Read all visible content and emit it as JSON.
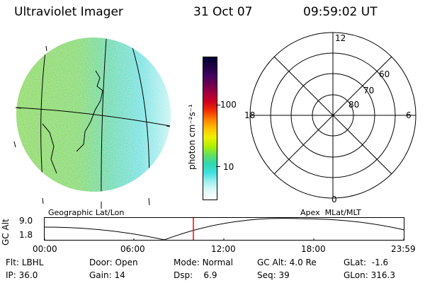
{
  "header": {
    "instrument": "Ultraviolet Imager",
    "date": "31 Oct 07",
    "time": "09:59:02 UT"
  },
  "colorbar": {
    "unit_label": "photon cm⁻²s⁻¹",
    "ticks": [
      "100",
      "10"
    ],
    "colors": [
      "#000033",
      "#200040",
      "#400060",
      "#6a0050",
      "#a00040",
      "#d00020",
      "#f03000",
      "#ff8000",
      "#ffc000",
      "#f0f000",
      "#b0f000",
      "#60e060",
      "#30d8b0",
      "#40e0e0",
      "#a0f0f0",
      "#e0f8f8",
      "#ffffff"
    ]
  },
  "polar_plot": {
    "mlt_labels": {
      "top": "12",
      "right": "6",
      "bottom": "0",
      "left": "18"
    },
    "lat_labels": [
      "60",
      "70",
      "80"
    ]
  },
  "coords": {
    "left_label": "Geographic Lat/Lon",
    "right_label": "Apex  MLat/MLT"
  },
  "orbit_plot": {
    "ylabel": "GC Alt",
    "yticks": [
      "9.0",
      "1.8"
    ],
    "xticks": [
      "00:00",
      "06:00",
      "12:00",
      "18:00",
      "23:59"
    ],
    "cursor_color": "#ff0000"
  },
  "info": {
    "row1": [
      {
        "label": "Flt:",
        "value": "LBHL"
      },
      {
        "label": "Door:",
        "value": "Open"
      },
      {
        "label": "Mode:",
        "value": "Normal"
      },
      {
        "label": "GC Alt:",
        "value": "4.0 Re"
      },
      {
        "label": "GLat:",
        "value": "-1.6"
      }
    ],
    "row2": [
      {
        "label": "IP:",
        "value": "36.0"
      },
      {
        "label": "Gain:",
        "value": "14"
      },
      {
        "label": "Dsp:",
        "value": "6.9"
      },
      {
        "label": "Seq:",
        "value": "39"
      },
      {
        "label": "GLon:",
        "value": "316.3"
      }
    ]
  }
}
